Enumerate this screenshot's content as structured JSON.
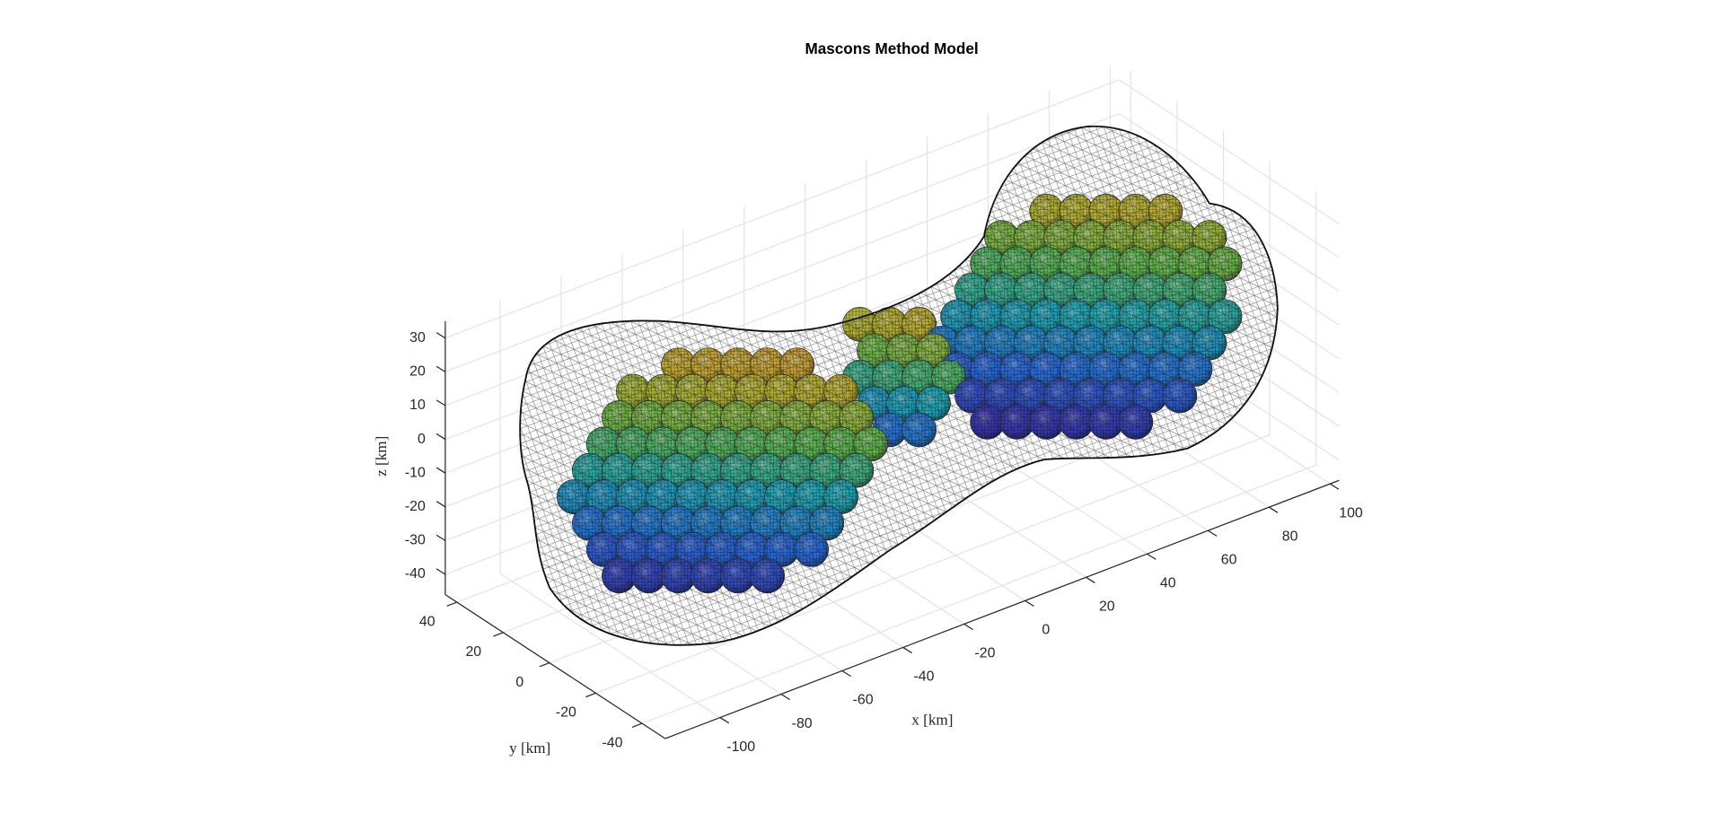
{
  "chart_data": {
    "type": "surface3d",
    "title": "Mascons Method Model",
    "x_label": "x [km]",
    "y_label": "y [km]",
    "z_label": "z [km]",
    "xlim": [
      -118,
      103
    ],
    "ylim": [
      -50,
      45
    ],
    "zlim": [
      -46,
      35
    ],
    "xticks": [
      -100,
      -80,
      -60,
      -40,
      -20,
      0,
      20,
      40,
      60,
      80,
      100
    ],
    "yticks": [
      -40,
      -20,
      0,
      20,
      40
    ],
    "zticks": [
      -40,
      -30,
      -20,
      -10,
      0,
      10,
      20,
      30
    ],
    "grid": true
  }
}
